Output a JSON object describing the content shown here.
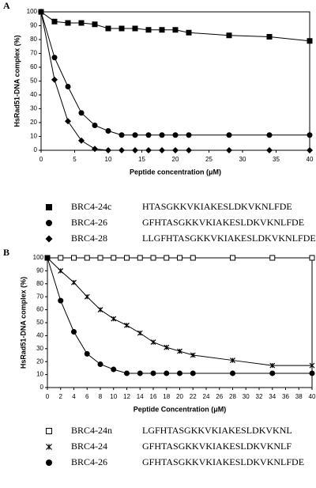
{
  "chart_data": [
    {
      "type": "line",
      "panel": "A",
      "y_label": "HsRad51-DNA complex (%)",
      "x_label": "Peptide concentration (μM)",
      "x": [
        0,
        2,
        4,
        6,
        8,
        10,
        12,
        14,
        16,
        18,
        20,
        22,
        28,
        34,
        40
      ],
      "xlim": [
        0,
        40
      ],
      "xticks": [
        0,
        5,
        10,
        15,
        20,
        25,
        30,
        35,
        40
      ],
      "ylim": [
        0,
        100
      ],
      "yticks": [
        0,
        10,
        20,
        30,
        40,
        50,
        60,
        70,
        80,
        90,
        100
      ],
      "series": [
        {
          "name": "BRC4-24c",
          "sequence": "HTASGKKVKIAKESLDKVKNLFDE",
          "marker": "square",
          "color": "#000000",
          "values": [
            100,
            93,
            92,
            92,
            91,
            88,
            88,
            88,
            87,
            87,
            87,
            85,
            83,
            82,
            79
          ]
        },
        {
          "name": "BRC4-26",
          "sequence": "GFHTASGKKVKIAKESLDKVKNLFDE",
          "marker": "circle",
          "color": "#000000",
          "values": [
            100,
            67,
            46,
            27,
            18,
            14,
            11,
            11,
            11,
            11,
            11,
            11,
            11,
            11,
            11
          ]
        },
        {
          "name": "BRC4-28",
          "sequence": "LLGFHTASGKKVKIAKESLDKVKNLFDE",
          "marker": "diamond",
          "color": "#000000",
          "values": [
            100,
            51,
            21,
            7,
            1,
            0,
            0,
            0,
            0,
            0,
            0,
            0,
            0,
            0,
            0
          ]
        }
      ]
    },
    {
      "type": "line",
      "panel": "B",
      "y_label": "HsRad51-DNA complex (%)",
      "x_label": "Peptide Concentration (μM)",
      "x": [
        0,
        2,
        4,
        6,
        8,
        10,
        12,
        14,
        16,
        18,
        20,
        22,
        28,
        34,
        40
      ],
      "xlim": [
        0,
        40
      ],
      "xticks": [
        0,
        2,
        4,
        6,
        8,
        10,
        12,
        14,
        16,
        18,
        20,
        22,
        24,
        26,
        28,
        30,
        32,
        34,
        36,
        38,
        40
      ],
      "ylim": [
        0,
        100
      ],
      "yticks": [
        0,
        10,
        20,
        30,
        40,
        50,
        60,
        70,
        80,
        90,
        100
      ],
      "series": [
        {
          "name": "BRC4-24n",
          "sequence": "LGFHTASGKKVKIAKESLDKVKNL",
          "marker": "square-open",
          "color": "#000000",
          "values": [
            100,
            100,
            100,
            100,
            100,
            100,
            100,
            100,
            100,
            100,
            100,
            100,
            100,
            100,
            100
          ]
        },
        {
          "name": "BRC4-24",
          "sequence": "GFHTASGKKVKIAKESLDKVKNLF",
          "marker": "asterisk",
          "color": "#000000",
          "values": [
            100,
            90,
            81,
            70,
            60,
            53,
            48,
            42,
            35,
            31,
            28,
            25,
            21,
            17,
            17
          ]
        },
        {
          "name": "BRC4-26",
          "sequence": "GFHTASGKKVKIAKESLDKVKNLFDE",
          "marker": "circle",
          "color": "#000000",
          "values": [
            100,
            67,
            43,
            26,
            18,
            14,
            11,
            11,
            11,
            11,
            11,
            11,
            11,
            11,
            11
          ]
        }
      ]
    }
  ]
}
